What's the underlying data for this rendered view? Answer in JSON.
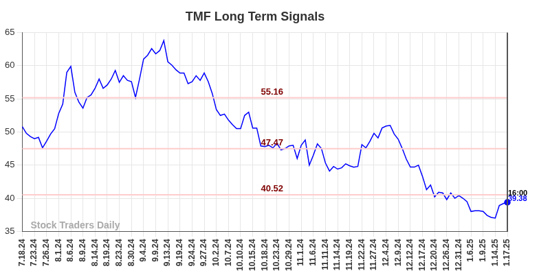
{
  "chart_data": {
    "type": "line",
    "title": "TMF Long Term Signals",
    "categories": [
      "7.18.24",
      null,
      null,
      "7.23.24",
      null,
      null,
      "7.26.24",
      null,
      null,
      "8.1.24",
      null,
      null,
      "8.6.24",
      null,
      null,
      "8.9.24",
      null,
      null,
      "8.14.24",
      null,
      null,
      "8.19.24",
      null,
      null,
      "8.23.24",
      null,
      null,
      "8.30.24",
      null,
      null,
      "9.4.24",
      null,
      null,
      "9.9.24",
      null,
      null,
      "9.13.24",
      null,
      null,
      "9.19.24",
      null,
      null,
      "9.24.24",
      null,
      null,
      "9.27.24",
      null,
      null,
      "10.2.24",
      null,
      null,
      "10.7.24",
      null,
      null,
      "10.10.24",
      null,
      null,
      "10.15.24",
      null,
      null,
      "10.18.24",
      null,
      null,
      "10.23.24",
      null,
      null,
      "10.29.24",
      null,
      null,
      "11.1.24",
      null,
      null,
      "11.6.24",
      null,
      null,
      "11.11.24",
      null,
      null,
      "11.14.24",
      null,
      null,
      "11.19.24",
      null,
      null,
      "11.22.24",
      null,
      null,
      "11.27.24",
      null,
      null,
      "12.4.24",
      null,
      null,
      "12.9.24",
      null,
      null,
      "12.12.24",
      null,
      null,
      "12.17.24",
      null,
      null,
      "12.20.24",
      null,
      null,
      "12.26.24",
      null,
      null,
      "12.31.24",
      null,
      null,
      "1.6.25",
      null,
      null,
      "1.9.25",
      null,
      null,
      "1.14.25",
      null,
      null,
      "1.17.25"
    ],
    "values": [
      50.8,
      49.8,
      49.3,
      49.0,
      49.2,
      47.6,
      48.6,
      49.7,
      50.5,
      52.8,
      54.2,
      59.0,
      59.9,
      56.0,
      54.5,
      53.6,
      55.2,
      55.6,
      56.6,
      58.0,
      56.6,
      57.1,
      58.0,
      59.3,
      57.5,
      58.5,
      57.8,
      57.6,
      55.2,
      58.0,
      61.0,
      61.6,
      62.6,
      61.8,
      62.3,
      63.8,
      60.6,
      60.1,
      59.4,
      58.9,
      58.9,
      57.3,
      57.6,
      58.5,
      57.8,
      58.9,
      57.6,
      55.8,
      53.4,
      52.5,
      52.7,
      51.8,
      51.1,
      50.5,
      50.5,
      52.5,
      53.0,
      50.6,
      50.6,
      47.9,
      47.8,
      48.0,
      47.6,
      48.3,
      47.3,
      47.5,
      47.9,
      48.0,
      46.0,
      48.0,
      48.8,
      45.0,
      46.5,
      48.2,
      47.5,
      45.3,
      44.1,
      44.8,
      44.4,
      44.6,
      45.2,
      44.9,
      44.7,
      44.8,
      48.1,
      47.6,
      48.6,
      49.8,
      49.1,
      50.6,
      50.9,
      51.0,
      49.7,
      48.9,
      47.5,
      45.9,
      44.7,
      44.7,
      45.0,
      43.3,
      41.3,
      42.0,
      40.2,
      40.9,
      40.8,
      39.8,
      40.8,
      40.0,
      40.4,
      40.0,
      39.5,
      38.0,
      38.1,
      38.1,
      38.0,
      37.4,
      37.1,
      37.0,
      38.9,
      39.2,
      39.38
    ],
    "color": "#0000ff",
    "ylim": [
      35,
      65
    ],
    "yticks": [
      35,
      40,
      45,
      50,
      55,
      60,
      65
    ],
    "grid": true,
    "reference_lines": [
      {
        "value": 55.16,
        "label": "55.16",
        "color": "#ffcccc"
      },
      {
        "value": 47.47,
        "label": "47.47",
        "color": "#ffcccc"
      },
      {
        "value": 40.52,
        "label": "40.52",
        "color": "#ffcccc"
      }
    ],
    "last_time_label": "16:00",
    "last_value_label": "39.38",
    "watermark": "Stock Traders Daily"
  }
}
